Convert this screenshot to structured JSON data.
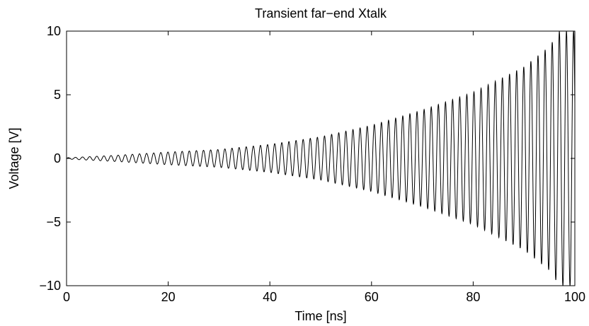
{
  "chart_data": {
    "type": "line",
    "title": "Transient far−end Xtalk",
    "xlabel": "Time [ns]",
    "ylabel": "Voltage [V]",
    "xlim": [
      0,
      100
    ],
    "ylim": [
      -10,
      10
    ],
    "grid": false,
    "legend": "none",
    "x_ticks": [
      0,
      20,
      40,
      60,
      80,
      100
    ],
    "x_tick_labels": [
      "0",
      "20",
      "40",
      "60",
      "80",
      "100"
    ],
    "y_ticks": [
      10,
      5,
      0,
      -5,
      -10
    ],
    "y_tick_labels": [
      "10",
      "5",
      "0",
      "−5",
      "−10"
    ],
    "series": [
      {
        "style": "oscillation",
        "color": "#000000",
        "period_ns": 1.4,
        "envelope": {
          "t": [
            0,
            10,
            20,
            30,
            40,
            50,
            60,
            70,
            80,
            90,
            95,
            97,
            100
          ],
          "amplitude": [
            0.05,
            0.25,
            0.5,
            0.7,
            1.1,
            1.7,
            2.6,
            3.8,
            5.2,
            7.2,
            8.8,
            10,
            10
          ]
        }
      }
    ]
  }
}
